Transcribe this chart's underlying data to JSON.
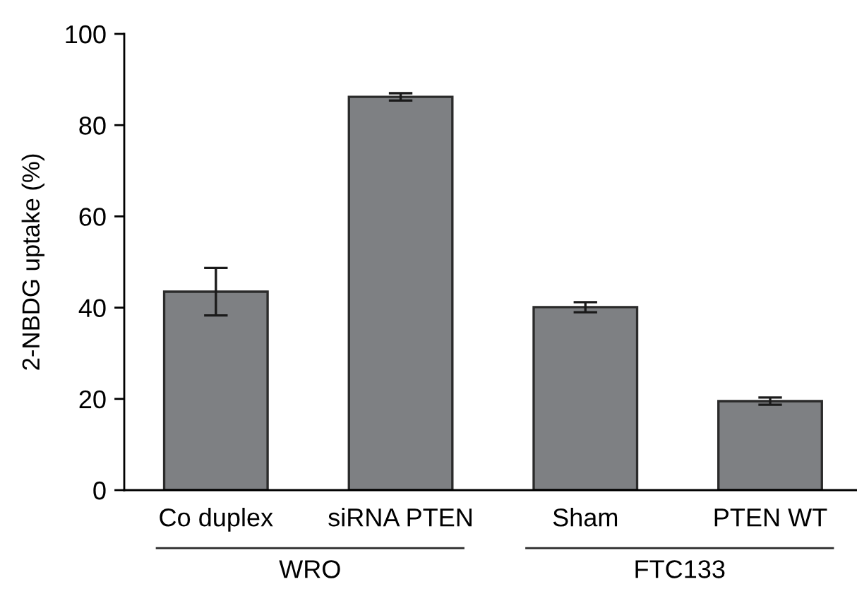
{
  "chart_data": {
    "type": "bar",
    "ylabel": "2-NBDG uptake (%)",
    "categories": [
      "Co duplex",
      "siRNA PTEN",
      "Sham",
      "PTEN WT"
    ],
    "values": [
      43.5,
      86.2,
      40.1,
      19.5
    ],
    "errors": [
      5.2,
      0.8,
      1.1,
      0.8
    ],
    "color": "#7e8083",
    "ylim": [
      0,
      100
    ],
    "yticks": [
      0,
      20,
      40,
      60,
      80,
      100
    ],
    "annotations": [
      "WRO",
      "FTC133"
    ]
  }
}
